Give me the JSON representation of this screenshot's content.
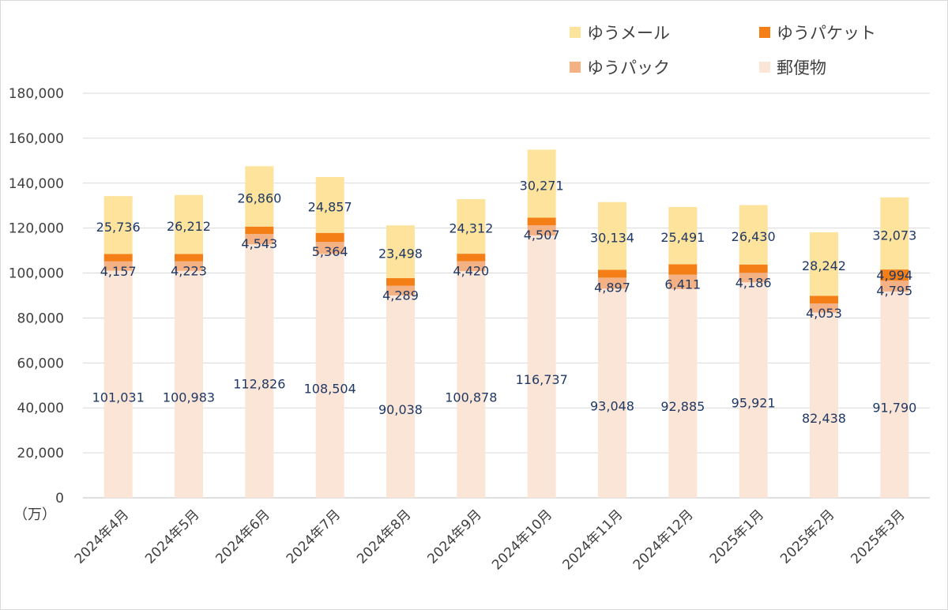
{
  "chart_data": {
    "type": "bar",
    "stacked": true,
    "categories": [
      "2024年4月",
      "2024年5月",
      "2024年6月",
      "2024年7月",
      "2024年8月",
      "2024年9月",
      "2024年10月",
      "2024年11月",
      "2024年12月",
      "2025年1月",
      "2025年2月",
      "2025年3月"
    ],
    "series": [
      {
        "name": "郵便物",
        "color": "#fbe5d6",
        "values": [
          101031,
          100983,
          112826,
          108504,
          90038,
          100878,
          116737,
          93048,
          92885,
          95921,
          82438,
          91790
        ]
      },
      {
        "name": "ゆうパック",
        "color": "#f4b183",
        "values": [
          4157,
          4223,
          4543,
          5364,
          4289,
          4420,
          4507,
          4897,
          6411,
          4186,
          4053,
          4795
        ]
      },
      {
        "name": "ゆうパケット",
        "color": "#f47f17",
        "values": [
          3300,
          3300,
          3300,
          4000,
          3400,
          3300,
          3400,
          3500,
          4600,
          3700,
          3400,
          4994
        ]
      },
      {
        "name": "ゆうメール",
        "color": "#fde39b",
        "values": [
          25736,
          26212,
          26860,
          24857,
          23498,
          24312,
          30271,
          30134,
          25491,
          26430,
          28242,
          32073
        ]
      }
    ],
    "labels": {
      "郵便物": [
        "101,031",
        "100,983",
        "112,826",
        "108,504",
        "90,038",
        "100,878",
        "116,737",
        "93,048",
        "92,885",
        "95,921",
        "82,438",
        "91,790"
      ],
      "ゆうパック": [
        "4,157",
        "4,223",
        "4,543",
        "5,364",
        "4,289",
        "4,420",
        "4,507",
        "4,897",
        "6,411",
        "4,186",
        "4,053",
        "4,795"
      ],
      "ゆうパケット": [
        "",
        "",
        "",
        "",
        "",
        "",
        "",
        "",
        "",
        "",
        "",
        "4,994"
      ],
      "ゆうメール": [
        "25,736",
        "26,212",
        "26,860",
        "24,857",
        "23,498",
        "24,312",
        "30,271",
        "30,134",
        "25,491",
        "26,430",
        "28,242",
        "32,073"
      ]
    },
    "ylim": [
      0,
      180000
    ],
    "yticks": [
      "0",
      "20,000",
      "40,000",
      "60,000",
      "80,000",
      "100,000",
      "120,000",
      "140,000",
      "160,000",
      "180,000"
    ],
    "ylabel": "（万）",
    "grid": true,
    "legend": [
      {
        "name": "ゆうメール",
        "color": "#fde39b"
      },
      {
        "name": "ゆうパケット",
        "color": "#f47f17"
      },
      {
        "name": "ゆうパック",
        "color": "#f4b183"
      },
      {
        "name": "郵便物",
        "color": "#fbe5d6"
      }
    ],
    "legend_position": "top-right"
  }
}
